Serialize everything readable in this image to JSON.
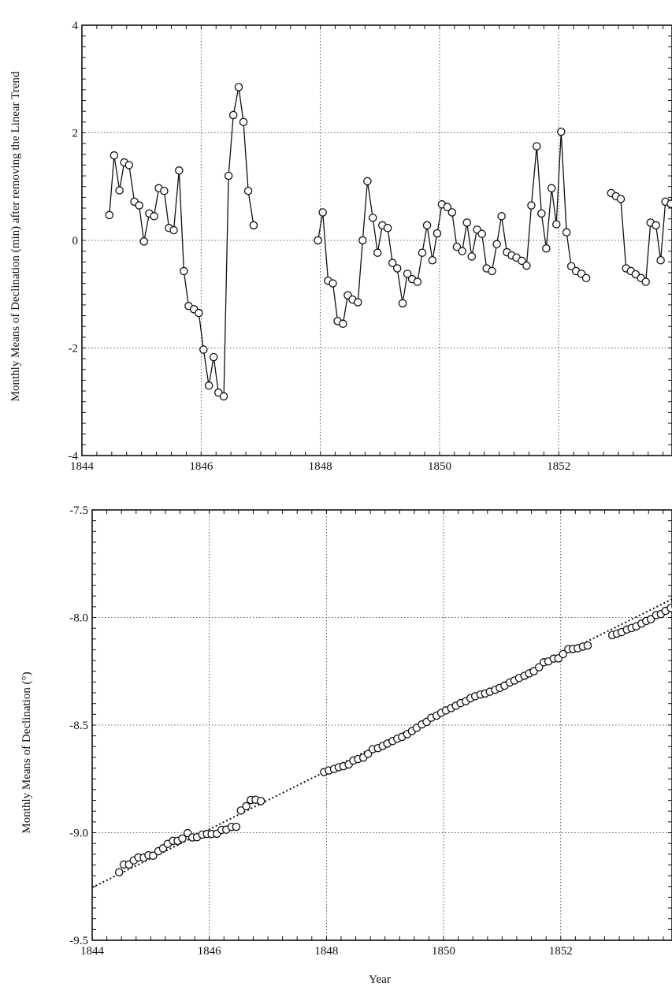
{
  "chart_data": [
    {
      "type": "line",
      "title": "",
      "ylabel": "Monthly Means of Declination (min) after removing the Linear Trend",
      "xlabel": "",
      "xlim": [
        1844,
        1853.9
      ],
      "ylim": [
        -4,
        4
      ],
      "grid": true,
      "x_ticks": [
        "1844",
        "1846",
        "1848",
        "1850",
        "1852"
      ],
      "y_ticks": [
        "-4",
        "-2",
        "0",
        "2",
        "4"
      ],
      "segments": [
        {
          "x": [
            1844.46,
            1844.54,
            1844.63,
            1844.71,
            1844.79,
            1844.88,
            1844.96,
            1845.04,
            1845.13,
            1845.21,
            1845.29,
            1845.38,
            1845.46,
            1845.54,
            1845.63,
            1845.71,
            1845.79,
            1845.88,
            1845.96,
            1846.04,
            1846.13,
            1846.21,
            1846.29,
            1846.38,
            1846.46,
            1846.54,
            1846.63,
            1846.71,
            1846.79,
            1846.88
          ],
          "y": [
            0.47,
            1.58,
            0.93,
            1.45,
            1.4,
            0.72,
            0.65,
            -0.02,
            0.5,
            0.45,
            0.97,
            0.92,
            0.23,
            0.19,
            1.3,
            -0.57,
            -1.22,
            -1.28,
            -1.35,
            -2.03,
            -2.7,
            -2.17,
            -2.83,
            -2.9,
            1.2,
            2.33,
            2.85,
            2.2,
            0.92,
            0.28
          ]
        },
        {
          "x": [
            1847.96,
            1848.04,
            1848.13,
            1848.21,
            1848.29,
            1848.38,
            1848.46,
            1848.54,
            1848.63,
            1848.71,
            1848.79,
            1848.88,
            1848.96,
            1849.04,
            1849.13,
            1849.21,
            1849.29,
            1849.38,
            1849.46,
            1849.54,
            1849.63,
            1849.71,
            1849.79,
            1849.88,
            1849.96,
            1850.04,
            1850.13,
            1850.21,
            1850.29,
            1850.38,
            1850.46,
            1850.54,
            1850.63,
            1850.71,
            1850.79,
            1850.88,
            1850.96,
            1851.04,
            1851.13,
            1851.21,
            1851.29,
            1851.38,
            1851.46,
            1851.54,
            1851.63,
            1851.71,
            1851.79,
            1851.88,
            1851.96,
            1852.04,
            1852.13,
            1852.21,
            1852.29,
            1852.38,
            1852.46
          ],
          "y": [
            0.0,
            0.52,
            -0.75,
            -0.8,
            -1.5,
            -1.55,
            -1.02,
            -1.1,
            -1.15,
            0.0,
            1.1,
            0.42,
            -0.23,
            0.28,
            0.23,
            -0.42,
            -0.52,
            -1.17,
            -0.62,
            -0.72,
            -0.77,
            -0.23,
            0.28,
            -0.37,
            0.13,
            0.67,
            0.62,
            0.52,
            -0.12,
            -0.2,
            0.33,
            -0.3,
            0.2,
            0.12,
            -0.52,
            -0.57,
            -0.07,
            0.45,
            -0.22,
            -0.28,
            -0.32,
            -0.38,
            -0.47,
            0.65,
            1.75,
            0.5,
            -0.15,
            0.97,
            0.3,
            2.02,
            0.15,
            -0.48,
            -0.57,
            -0.62,
            -0.7
          ]
        },
        {
          "x": [
            1852.88,
            1852.96,
            1853.04,
            1853.13,
            1853.21,
            1853.29,
            1853.38,
            1853.46,
            1853.54,
            1853.63,
            1853.71,
            1853.79,
            1853.88
          ],
          "y": [
            0.88,
            0.82,
            0.77,
            -0.52,
            -0.57,
            -0.63,
            -0.7,
            -0.77,
            0.33,
            0.28,
            -0.37,
            0.72,
            0.68
          ]
        },
        {
          "x": [
            1853.88,
            1853.96
          ],
          "y": [
            0.68,
            1.18
          ]
        }
      ]
    },
    {
      "type": "scatter",
      "title": "",
      "ylabel": "Monthly Means of Declination (°)",
      "xlabel": "Year",
      "xlim": [
        1844,
        1853.9
      ],
      "ylim": [
        -9.5,
        -7.5
      ],
      "grid": true,
      "x_ticks": [
        "1844",
        "1846",
        "1848",
        "1850",
        "1852"
      ],
      "y_ticks": [
        "-9.5",
        "-9.0",
        "-8.5",
        "-8.0",
        "-7.5"
      ],
      "trend_line": {
        "x": [
          1844.0,
          1853.9
        ],
        "y": [
          -9.255,
          -7.915
        ]
      },
      "points": {
        "x": [
          1844.46,
          1844.54,
          1844.63,
          1844.71,
          1844.79,
          1844.88,
          1844.96,
          1845.04,
          1845.13,
          1845.21,
          1845.29,
          1845.38,
          1845.46,
          1845.54,
          1845.63,
          1845.71,
          1845.79,
          1845.88,
          1845.96,
          1846.04,
          1846.13,
          1846.21,
          1846.29,
          1846.38,
          1846.46,
          1846.54,
          1846.63,
          1846.71,
          1846.79,
          1846.88,
          1847.96,
          1848.04,
          1848.13,
          1848.21,
          1848.29,
          1848.38,
          1848.46,
          1848.54,
          1848.63,
          1848.71,
          1848.79,
          1848.88,
          1848.96,
          1849.04,
          1849.13,
          1849.21,
          1849.29,
          1849.38,
          1849.46,
          1849.54,
          1849.63,
          1849.71,
          1849.79,
          1849.88,
          1849.96,
          1850.04,
          1850.13,
          1850.21,
          1850.29,
          1850.38,
          1850.46,
          1850.54,
          1850.63,
          1850.71,
          1850.79,
          1850.88,
          1850.96,
          1851.04,
          1851.13,
          1851.21,
          1851.29,
          1851.38,
          1851.46,
          1851.54,
          1851.63,
          1851.71,
          1851.79,
          1851.88,
          1851.96,
          1852.04,
          1852.13,
          1852.21,
          1852.29,
          1852.38,
          1852.46,
          1852.88,
          1852.96,
          1853.04,
          1853.13,
          1853.21,
          1853.29,
          1853.38,
          1853.46,
          1853.54,
          1853.63,
          1853.71,
          1853.79,
          1853.88,
          1853.96
        ],
        "y": [
          -9.184,
          -9.148,
          -9.148,
          -9.129,
          -9.115,
          -9.116,
          -9.105,
          -9.107,
          -9.086,
          -9.073,
          -9.052,
          -9.038,
          -9.038,
          -9.027,
          -9.002,
          -9.022,
          -9.021,
          -9.009,
          -9.006,
          -9.006,
          -9.005,
          -8.987,
          -8.986,
          -8.973,
          -8.973,
          -8.897,
          -8.877,
          -8.848,
          -8.847,
          -8.853,
          -8.718,
          -8.711,
          -8.704,
          -8.696,
          -8.691,
          -8.683,
          -8.665,
          -8.658,
          -8.651,
          -8.634,
          -8.612,
          -8.607,
          -8.597,
          -8.586,
          -8.574,
          -8.563,
          -8.555,
          -8.542,
          -8.528,
          -8.513,
          -8.497,
          -8.485,
          -8.466,
          -8.456,
          -8.443,
          -8.432,
          -8.421,
          -8.41,
          -8.398,
          -8.389,
          -8.375,
          -8.366,
          -8.358,
          -8.353,
          -8.345,
          -8.336,
          -8.327,
          -8.317,
          -8.302,
          -8.293,
          -8.281,
          -8.271,
          -8.26,
          -8.25,
          -8.231,
          -8.208,
          -8.204,
          -8.191,
          -8.19,
          -8.17,
          -8.147,
          -8.146,
          -8.143,
          -8.135,
          -8.13,
          -8.082,
          -8.075,
          -8.068,
          -8.056,
          -8.049,
          -8.041,
          -8.028,
          -8.016,
          -8.008,
          -7.989,
          -7.984,
          -7.969,
          -7.956,
          -7.95
        ]
      }
    }
  ]
}
